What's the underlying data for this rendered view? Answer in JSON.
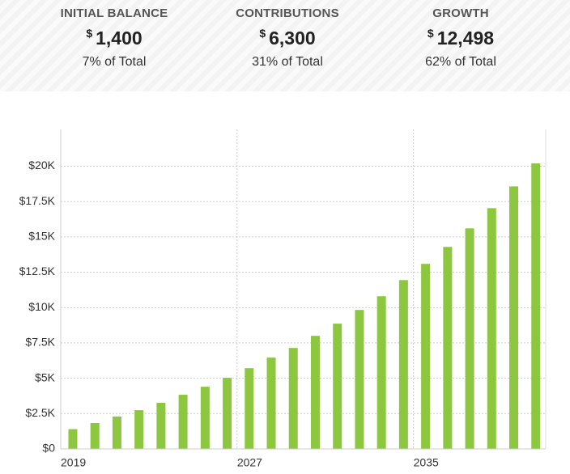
{
  "summary": [
    {
      "label": "INITIAL BALANCE",
      "currency": "$",
      "amount": "1,400",
      "share": "7% of Total"
    },
    {
      "label": "CONTRIBUTIONS",
      "currency": "$",
      "amount": "6,300",
      "share": "31% of Total"
    },
    {
      "label": "GROWTH",
      "currency": "$",
      "amount": "12,498",
      "share": "62% of Total"
    }
  ],
  "chart_data": {
    "type": "bar",
    "x": [
      2019,
      2020,
      2021,
      2022,
      2023,
      2024,
      2025,
      2026,
      2027,
      2028,
      2029,
      2030,
      2031,
      2032,
      2033,
      2034,
      2035,
      2036,
      2037,
      2038,
      2039,
      2040
    ],
    "values": [
      1400,
      1830,
      2290,
      2740,
      3260,
      3830,
      4400,
      5030,
      5710,
      6460,
      7140,
      8000,
      8860,
      9830,
      10800,
      11940,
      13090,
      14290,
      15600,
      17030,
      18570,
      20198
    ],
    "color": "#8dc63f",
    "xlim": [
      2019,
      2041
    ],
    "xticks": [
      2019,
      2027,
      2035
    ],
    "ylim": [
      0,
      22600
    ],
    "yticks": [
      {
        "value": 0,
        "label": "$0"
      },
      {
        "value": 2500,
        "label": "$2.5K"
      },
      {
        "value": 5000,
        "label": "$5K"
      },
      {
        "value": 7500,
        "label": "$7.5K"
      },
      {
        "value": 10000,
        "label": "$10K"
      },
      {
        "value": 12500,
        "label": "$12.5K"
      },
      {
        "value": 15000,
        "label": "$15K"
      },
      {
        "value": 17500,
        "label": "$17.5K"
      },
      {
        "value": 20000,
        "label": "$20K"
      }
    ],
    "grid": true
  }
}
